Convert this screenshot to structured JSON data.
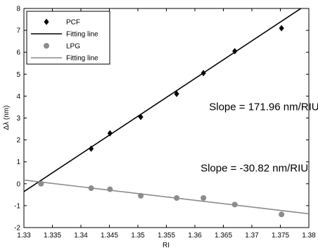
{
  "chart_data": {
    "type": "scatter",
    "xlabel": "RI",
    "ylabel": "Δλ (nm)",
    "xlim": [
      1.33,
      1.38
    ],
    "ylim": [
      -2,
      8
    ],
    "grid": false,
    "legend_placement": "top-left",
    "x_ticks": [
      "1.33",
      "1.335",
      "1.34",
      "1.345",
      "1.35",
      "1.355",
      "1.36",
      "1.365",
      "1.37",
      "1.375",
      "1.38"
    ],
    "y_ticks": [
      "-2",
      "-1",
      "0",
      "1",
      "2",
      "3",
      "4",
      "5",
      "6",
      "7",
      "8"
    ],
    "series": [
      {
        "name": "PCF",
        "marker": "diamond",
        "color": "#000000",
        "x": [
          1.3418,
          1.3451,
          1.3505,
          1.3568,
          1.3615,
          1.367,
          1.3752
        ],
        "y": [
          1.6,
          2.3,
          3.05,
          4.1,
          5.05,
          6.05,
          7.1
        ]
      },
      {
        "name": "Fitting line",
        "kind": "line",
        "color": "#000000",
        "x": [
          1.33,
          1.38
        ],
        "y": [
          -0.36,
          8.24
        ]
      },
      {
        "name": "LPG",
        "marker": "circle",
        "color": "#8c8c8c",
        "x": [
          1.333,
          1.3418,
          1.3451,
          1.3505,
          1.3568,
          1.3615,
          1.367,
          1.3752
        ],
        "y": [
          0.0,
          -0.2,
          -0.25,
          -0.55,
          -0.65,
          -0.65,
          -0.95,
          -1.4
        ]
      },
      {
        "name": "Fitting line",
        "kind": "line",
        "color": "#8c8c8c",
        "x": [
          1.33,
          1.38
        ],
        "y": [
          0.17,
          -1.37
        ]
      }
    ],
    "annotations": [
      {
        "text": "Slope = 171.96 nm/RIU",
        "x": 1.3625,
        "y": 3.35
      },
      {
        "text": "Slope = -30.82 nm/RIU",
        "x": 1.361,
        "y": 0.55
      }
    ]
  }
}
